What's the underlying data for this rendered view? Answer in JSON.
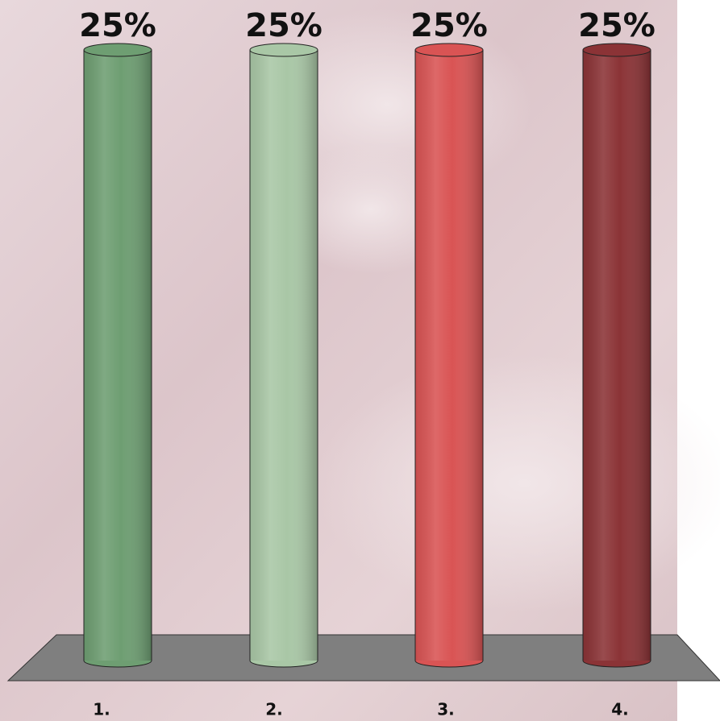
{
  "chart_data": {
    "type": "bar",
    "categories": [
      "1.",
      "2.",
      "3.",
      "4."
    ],
    "values": [
      25,
      25,
      25,
      25
    ],
    "value_labels": [
      "25%",
      "25%",
      "25%",
      "25%"
    ],
    "colors": [
      "#6e9e72",
      "#a9c7a6",
      "#d95454",
      "#8b3336"
    ]
  }
}
